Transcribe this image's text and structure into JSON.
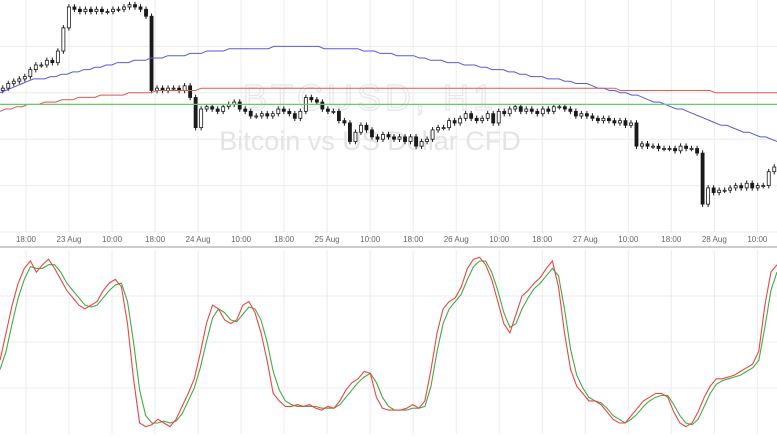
{
  "watermark": {
    "symbol": "BTCUSD, H1",
    "name": "Bitcoin vs US Dollar CFD"
  },
  "colors": {
    "candle": "#1a1a1a",
    "ma_fast": "#5a5ad6",
    "ma_slow": "#d95a5a",
    "support": "#66cc66",
    "stoch_k": "#ee4444",
    "stoch_d": "#44aa44",
    "grid": "#ececec",
    "separator": "#999999"
  },
  "chart_data": [
    {
      "type": "candlestick",
      "x_tick_labels": [
        "18:00",
        "23 Aug",
        "10:00",
        "18:00",
        "24 Aug",
        "10:00",
        "18:00",
        "25 Aug",
        "10:00",
        "18:00",
        "26 Aug",
        "10:00",
        "18:00",
        "27 Aug",
        "10:00",
        "18:00",
        "28 Aug",
        "10:00"
      ],
      "y_range": [
        0,
        100
      ],
      "closes": [
        62,
        64,
        65,
        66,
        67,
        70,
        72,
        72,
        74,
        73,
        78,
        88,
        97,
        96,
        95,
        96,
        95,
        96,
        95,
        95,
        96,
        96,
        97,
        98,
        97,
        96,
        93,
        61,
        62,
        61,
        62,
        62,
        61,
        63,
        58,
        45,
        53,
        54,
        53,
        52,
        54,
        55,
        56,
        53,
        52,
        50,
        50,
        51,
        50,
        51,
        53,
        52,
        51,
        49,
        52,
        58,
        57,
        56,
        53,
        52,
        52,
        48,
        47,
        39,
        43,
        46,
        44,
        41,
        40,
        42,
        41,
        40,
        41,
        39,
        41,
        37,
        39,
        40,
        44,
        45,
        45,
        48,
        47,
        49,
        51,
        49,
        48,
        49,
        51,
        47,
        52,
        51,
        53,
        54,
        52,
        53,
        52,
        51,
        53,
        52,
        54,
        54,
        53,
        52,
        50,
        51,
        50,
        49,
        48,
        49,
        48,
        47,
        48,
        46,
        47,
        37,
        38,
        37,
        37,
        36,
        36,
        36,
        35,
        37,
        36,
        36,
        34,
        12,
        19,
        17,
        18,
        18,
        19,
        20,
        19,
        21,
        19,
        20,
        20,
        26,
        28
      ],
      "series": [
        {
          "name": "",
          "style": "moving-average-fast",
          "values": [
            60,
            61,
            62,
            63,
            64,
            65,
            66,
            66,
            66,
            67,
            67,
            68,
            68,
            69,
            69,
            70,
            70,
            71,
            71,
            72,
            72,
            73,
            73,
            73,
            74,
            74,
            74,
            75,
            75,
            75,
            76,
            76,
            76,
            76,
            77,
            77,
            77,
            78,
            78,
            78,
            78,
            79,
            79,
            79,
            79,
            79,
            79,
            79,
            79,
            80,
            80,
            80,
            80,
            80,
            80,
            80,
            80,
            80,
            79,
            79,
            79,
            79,
            79,
            79,
            79,
            78,
            78,
            78,
            77,
            77,
            77,
            76,
            76,
            76,
            76,
            75,
            75,
            74,
            74,
            74,
            73,
            73,
            73,
            72,
            72,
            72,
            71,
            71,
            70,
            70,
            70,
            69,
            69,
            68,
            68,
            67,
            67,
            67,
            66,
            66,
            66,
            65,
            65,
            64,
            64,
            64,
            63,
            62,
            62,
            61,
            61,
            60,
            60,
            59,
            59,
            58,
            57,
            56,
            56,
            55,
            54,
            53,
            53,
            52,
            51,
            50,
            49,
            48,
            47,
            46,
            46,
            45,
            44,
            43,
            43,
            42,
            41,
            41,
            40,
            39
          ]
        },
        {
          "name": "",
          "style": "moving-average-slow",
          "values": [
            52,
            53,
            53,
            54,
            54,
            55,
            55,
            55,
            56,
            56,
            56,
            57,
            57,
            57,
            58,
            58,
            58,
            58,
            59,
            59,
            59,
            59,
            59,
            60,
            60,
            60,
            60,
            60,
            61,
            61,
            61,
            61,
            61,
            61,
            61,
            61,
            62,
            62,
            62,
            62,
            62,
            62,
            62,
            62,
            62,
            62,
            62,
            62,
            62,
            62,
            62,
            62,
            62,
            62,
            62,
            62,
            62,
            62,
            62,
            62,
            62,
            62,
            62,
            62,
            62,
            62,
            62,
            62,
            62,
            62,
            62,
            62,
            62,
            62,
            62,
            62,
            62,
            62,
            62,
            62,
            62,
            62,
            62,
            62,
            62,
            62,
            62,
            62,
            62,
            62,
            62,
            62,
            62,
            62,
            62,
            62,
            62,
            62,
            62,
            62,
            62,
            62,
            62,
            62,
            62,
            62,
            62,
            62,
            62,
            62,
            62,
            61,
            61,
            61,
            61,
            61,
            61,
            61,
            61,
            61,
            61,
            61,
            61,
            61,
            61,
            61,
            61,
            61,
            60,
            60,
            60,
            60,
            60,
            60,
            60,
            60,
            60,
            60,
            60,
            60
          ]
        },
        {
          "name": "",
          "style": "horizontal-level",
          "values": [
            55
          ]
        }
      ]
    },
    {
      "type": "line",
      "ylim": [
        0,
        100
      ],
      "series": [
        {
          "name": "",
          "style": "stochastic-k",
          "values": [
            40,
            55,
            70,
            82,
            90,
            94,
            88,
            92,
            95,
            90,
            84,
            78,
            74,
            70,
            68,
            70,
            72,
            78,
            82,
            84,
            80,
            60,
            30,
            6,
            4,
            5,
            8,
            6,
            4,
            8,
            15,
            22,
            30,
            44,
            60,
            70,
            68,
            62,
            60,
            62,
            70,
            72,
            66,
            55,
            40,
            22,
            18,
            15,
            15,
            16,
            15,
            16,
            14,
            13,
            15,
            14,
            18,
            24,
            28,
            30,
            34,
            33,
            20,
            14,
            13,
            13,
            13,
            14,
            16,
            14,
            18,
            35,
            55,
            68,
            72,
            74,
            80,
            90,
            95,
            96,
            92,
            84,
            72,
            60,
            55,
            65,
            75,
            78,
            82,
            85,
            90,
            94,
            80,
            55,
            35,
            26,
            22,
            18,
            18,
            16,
            12,
            8,
            6,
            6,
            10,
            14,
            18,
            20,
            22,
            22,
            20,
            12,
            6,
            4,
            6,
            12,
            20,
            26,
            30,
            30,
            31,
            32,
            34,
            36,
            38,
            45,
            70,
            88,
            92
          ],
          "data_series_note": ""
        },
        {
          "name": "",
          "style": "stochastic-d",
          "values": [
            35,
            45,
            60,
            74,
            84,
            91,
            90,
            90,
            92,
            92,
            88,
            82,
            78,
            74,
            70,
            69,
            70,
            74,
            78,
            81,
            82,
            72,
            50,
            24,
            10,
            6,
            6,
            7,
            6,
            7,
            11,
            18,
            25,
            36,
            50,
            63,
            68,
            66,
            62,
            61,
            65,
            69,
            68,
            62,
            50,
            34,
            24,
            18,
            16,
            15,
            15,
            15,
            15,
            14,
            14,
            14,
            16,
            20,
            24,
            28,
            31,
            33,
            28,
            20,
            15,
            13,
            13,
            13,
            14,
            14,
            15,
            26,
            45,
            60,
            68,
            72,
            76,
            84,
            91,
            94,
            94,
            88,
            78,
            66,
            58,
            60,
            68,
            74,
            79,
            82,
            86,
            90,
            86,
            68,
            46,
            32,
            25,
            20,
            18,
            17,
            14,
            10,
            8,
            6,
            8,
            11,
            15,
            18,
            20,
            21,
            21,
            16,
            10,
            6,
            5,
            8,
            15,
            22,
            27,
            29,
            30,
            31,
            32,
            34,
            36,
            40,
            58,
            78,
            88
          ],
          "data_series_note": ""
        }
      ]
    }
  ]
}
